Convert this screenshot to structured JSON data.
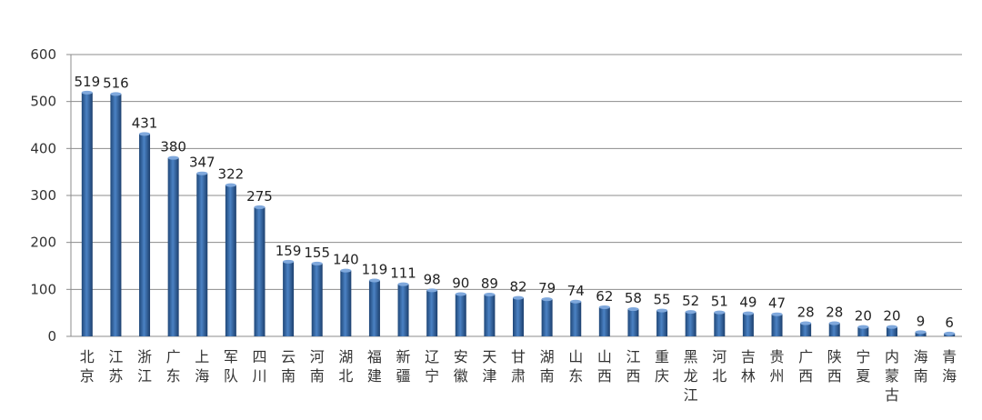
{
  "chart_data": {
    "type": "bar",
    "categories": [
      "北京",
      "江苏",
      "浙江",
      "广东",
      "上海",
      "军队",
      "四川",
      "云南",
      "河南",
      "湖北",
      "福建",
      "新疆",
      "辽宁",
      "安徽",
      "天津",
      "甘肃",
      "湖南",
      "山东",
      "山西",
      "江西",
      "重庆",
      "黑龙江",
      "河北",
      "吉林",
      "贵州",
      "广西",
      "陕西",
      "宁夏",
      "内蒙古",
      "海南",
      "青海"
    ],
    "values": [
      519,
      516,
      431,
      380,
      347,
      322,
      275,
      159,
      155,
      140,
      119,
      111,
      98,
      90,
      89,
      82,
      79,
      74,
      62,
      58,
      55,
      52,
      51,
      49,
      47,
      28,
      28,
      20,
      20,
      9,
      6
    ],
    "ylim": [
      0,
      600
    ],
    "yticks": [
      0,
      100,
      200,
      300,
      400,
      500,
      600
    ],
    "grid": true,
    "bar_color": "#2f5f9e",
    "title": "",
    "xlabel": "",
    "ylabel": ""
  }
}
